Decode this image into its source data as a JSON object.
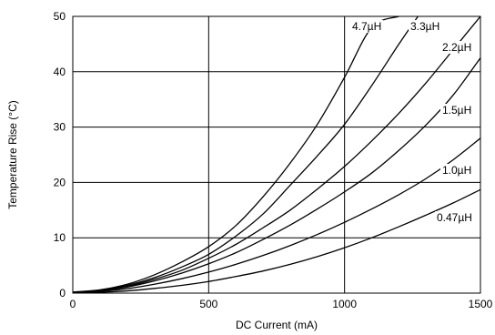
{
  "chart_data": {
    "type": "line",
    "xlabel": "DC Current (mA)",
    "ylabel": "Temperature Rise (°C)",
    "xlim": [
      0,
      1500
    ],
    "ylim": [
      0,
      50
    ],
    "x_ticks": [
      "0",
      "500",
      "1000",
      "1500"
    ],
    "y_ticks": [
      "0",
      "10",
      "20",
      "30",
      "40",
      "50"
    ],
    "grid": true,
    "legend": "inline labels near curve ends",
    "series": [
      {
        "name": "4.7µH",
        "x": [
          0,
          100,
          200,
          300,
          400,
          500,
          600,
          700,
          800,
          900,
          1000,
          1100,
          1200
        ],
        "y": [
          0.2,
          0.6,
          1.6,
          3.3,
          5.6,
          8.4,
          12.2,
          17.4,
          23.5,
          30.5,
          39,
          48,
          50
        ]
      },
      {
        "name": "3.3µH",
        "x": [
          0,
          100,
          200,
          300,
          400,
          500,
          600,
          700,
          800,
          900,
          1000,
          1100,
          1200,
          1270
        ],
        "y": [
          0.1,
          0.5,
          1.4,
          2.8,
          4.7,
          7.0,
          10.3,
          14.3,
          19.5,
          24.8,
          30.5,
          37.5,
          45,
          50
        ]
      },
      {
        "name": "2.2µH",
        "x": [
          0,
          100,
          200,
          300,
          400,
          500,
          600,
          700,
          800,
          900,
          1000,
          1100,
          1200,
          1300,
          1400,
          1500
        ],
        "y": [
          0.1,
          0.4,
          1.2,
          2.5,
          4.1,
          6.3,
          8.8,
          11.8,
          15.0,
          18.8,
          22.9,
          27.5,
          32.5,
          38.0,
          44.0,
          50.0
        ]
      },
      {
        "name": "1.5µH",
        "x": [
          0,
          100,
          200,
          300,
          400,
          500,
          600,
          700,
          800,
          900,
          1000,
          1100,
          1200,
          1300,
          1400,
          1500
        ],
        "y": [
          0.1,
          0.4,
          1.1,
          2.2,
          3.6,
          5.3,
          7.3,
          9.7,
          12.3,
          15.2,
          18.3,
          21.7,
          25.8,
          30.4,
          35.8,
          42.5
        ]
      },
      {
        "name": "1.0µH",
        "x": [
          0,
          100,
          200,
          300,
          400,
          500,
          600,
          700,
          800,
          900,
          1000,
          1100,
          1200,
          1300,
          1400,
          1500
        ],
        "y": [
          0.0,
          0.3,
          0.8,
          1.6,
          2.6,
          3.8,
          5.2,
          6.8,
          8.6,
          10.6,
          12.8,
          15.2,
          17.8,
          20.7,
          24.1,
          28.0
        ]
      },
      {
        "name": "0.47µH",
        "x": [
          0,
          100,
          200,
          300,
          400,
          500,
          600,
          700,
          800,
          900,
          1000,
          1100,
          1200,
          1300,
          1400,
          1500
        ],
        "y": [
          0.0,
          0.15,
          0.4,
          0.85,
          1.4,
          2.1,
          3.0,
          4.0,
          5.2,
          6.6,
          8.2,
          10.0,
          12.0,
          14.1,
          16.3,
          18.7
        ]
      }
    ]
  }
}
